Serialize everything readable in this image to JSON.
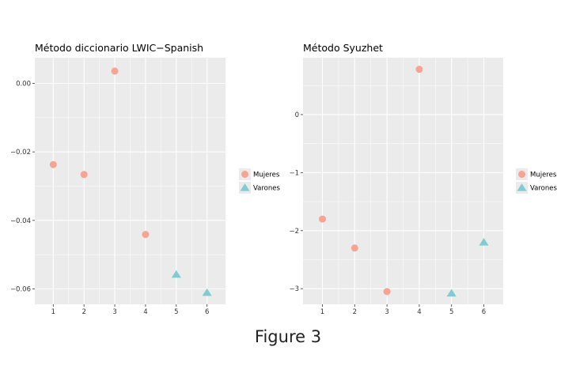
{
  "figure_caption": "Figure 3",
  "colors": {
    "Mujeres": "#F8A393",
    "Varones": "#7FCDD3",
    "panel_bg": "#EBEBEB",
    "grid": "#FFFFFF"
  },
  "chart_data": [
    {
      "type": "scatter",
      "title": "Método diccionario LWIC−Spanish",
      "xlabel": "",
      "ylabel": "",
      "xlim": [
        0.4,
        6.6
      ],
      "ylim": [
        -0.0645,
        0.0075
      ],
      "x_ticks": [
        1,
        2,
        3,
        4,
        5,
        6
      ],
      "y_ticks": [
        0.0,
        -0.02,
        -0.04,
        -0.06
      ],
      "y_tick_labels": [
        "0.00",
        "−0.02",
        "−0.04",
        "−0.06"
      ],
      "grid": true,
      "legend": "right",
      "series": [
        {
          "name": "Mujeres",
          "shape": "circle",
          "x": [
            1,
            2,
            3,
            4
          ],
          "y": [
            -0.0237,
            -0.0266,
            0.0036,
            -0.0441
          ]
        },
        {
          "name": "Varones",
          "shape": "triangle",
          "x": [
            5,
            6
          ],
          "y": [
            -0.0558,
            -0.0611
          ]
        }
      ]
    },
    {
      "type": "scatter",
      "title": "Método Syuzhet",
      "xlabel": "",
      "ylabel": "",
      "xlim": [
        0.4,
        6.6
      ],
      "ylim": [
        -3.27,
        0.98
      ],
      "x_ticks": [
        1,
        2,
        3,
        4,
        5,
        6
      ],
      "y_ticks": [
        0,
        -1,
        -2,
        -3
      ],
      "y_tick_labels": [
        "0",
        "−1",
        "−2",
        "−3"
      ],
      "grid": true,
      "legend": "right",
      "series": [
        {
          "name": "Mujeres",
          "shape": "circle",
          "x": [
            1,
            2,
            3,
            4
          ],
          "y": [
            -1.8,
            -2.3,
            -3.05,
            0.78
          ]
        },
        {
          "name": "Varones",
          "shape": "triangle",
          "x": [
            5,
            6
          ],
          "y": [
            -3.08,
            -2.2
          ]
        }
      ]
    }
  ]
}
